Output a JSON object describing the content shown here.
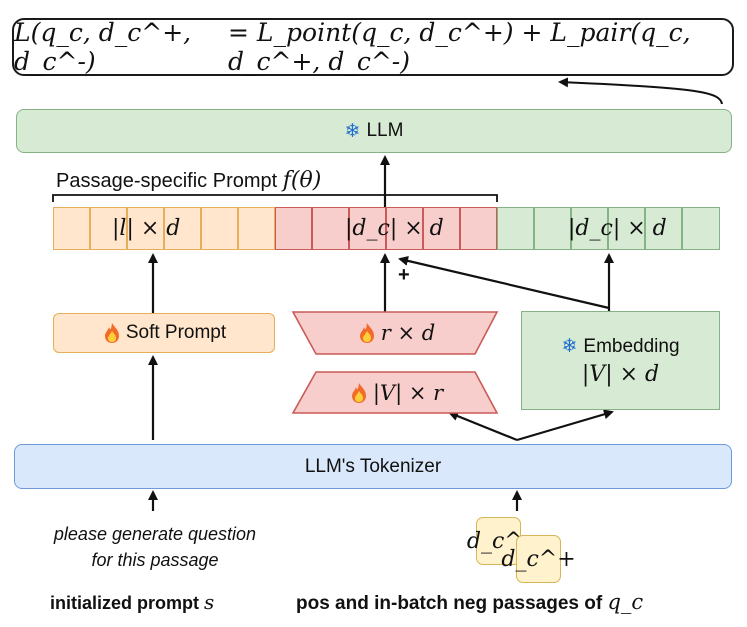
{
  "loss": {
    "lhs": "L(q_c, d_c^+, d_c^-)",
    "rhs": "= L_point(q_c, d_c^+) + L_pair(q_c, d_c^+, d_c^-)"
  },
  "llm": {
    "label": "LLM",
    "icon": "snowflake-icon"
  },
  "prompt_bracket_label": "Passage-specific Prompt",
  "prompt_bracket_math": "f(θ)",
  "rows": {
    "orange_label": "|l| × d",
    "red_label": "|d_c| × d",
    "green_label": "|d_c| × d"
  },
  "plus_sign": "+",
  "soft_prompt": {
    "label": "Soft Prompt",
    "icon": "fire-icon"
  },
  "lora_a": {
    "label": "r × d",
    "icon": "fire-icon"
  },
  "lora_b": {
    "label": "|V| × r",
    "icon": "fire-icon"
  },
  "embedding": {
    "label": "Embedding",
    "dims": "|V| × d",
    "icon": "snowflake-icon"
  },
  "tokenizer": {
    "label": "LLM's Tokenizer"
  },
  "prompt_text": {
    "line1": "please generate question",
    "line2": "for this passage"
  },
  "left_caption": {
    "text": "initialized prompt",
    "math": "s"
  },
  "right_caption": {
    "text": "pos and in-batch neg passages of",
    "math": "q_c"
  },
  "passages": {
    "neg": "d_c^-",
    "pos": "d_c^+"
  },
  "colors": {
    "orange_fill": "#ffe6cc",
    "orange_stroke": "#e6ad5a",
    "red_fill": "#f8cecc",
    "red_stroke": "#c95b58",
    "green_fill": "#d7ead3",
    "green_stroke": "#86b386",
    "blue_fill": "#dae8fc",
    "blue_stroke": "#6e9bd8",
    "doc_fill": "#fff2cc",
    "doc_stroke": "#d6b656"
  }
}
